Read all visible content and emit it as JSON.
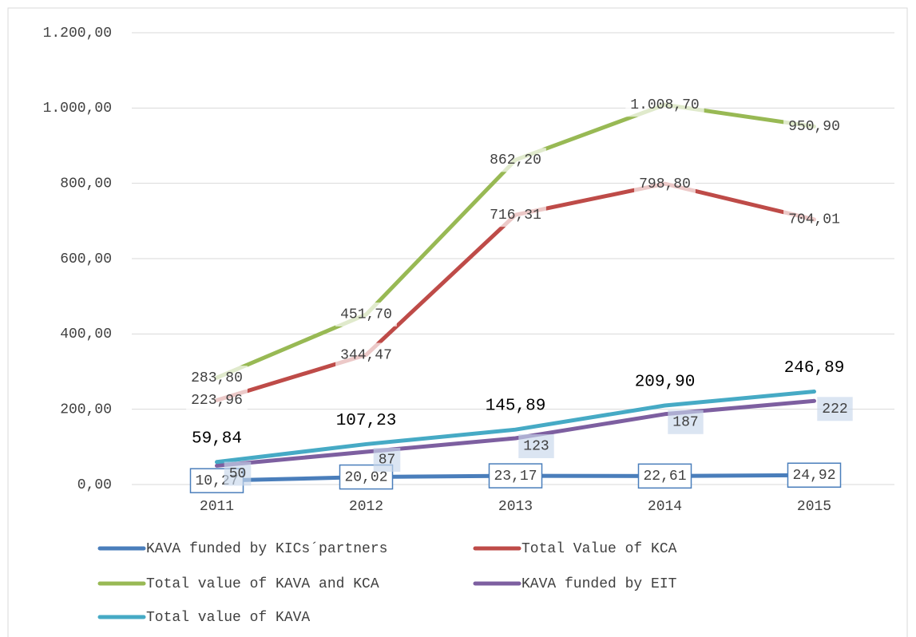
{
  "chart_data": {
    "type": "line",
    "categories": [
      "2011",
      "2012",
      "2013",
      "2014",
      "2015"
    ],
    "ylim": [
      0,
      1200
    ],
    "yticks": [
      {
        "value": 0,
        "label": "0,00"
      },
      {
        "value": 200,
        "label": "200,00"
      },
      {
        "value": 400,
        "label": "400,00"
      },
      {
        "value": 600,
        "label": "600,00"
      },
      {
        "value": 800,
        "label": "800,00"
      },
      {
        "value": 1000,
        "label": "1.000,00"
      },
      {
        "value": 1200,
        "label": "1.200,00"
      }
    ],
    "grid": true,
    "legend": "bottom",
    "series": [
      {
        "name": "KAVA funded by KICs´partners",
        "color": "#4a7ebb",
        "values": [
          10.27,
          20.02,
          23.17,
          22.61,
          24.92
        ],
        "value_labels": [
          "10,27",
          "20,02",
          "23,17",
          "22,61",
          "24,92"
        ]
      },
      {
        "name": "Total Value of KCA",
        "color": "#be4b48",
        "values": [
          223.96,
          344.47,
          716.31,
          798.8,
          704.01
        ],
        "value_labels": [
          "223,96",
          "344,47",
          "716,31",
          "798,80",
          "704,01"
        ]
      },
      {
        "name": "Total value of KAVA and KCA",
        "color": "#98b954",
        "values": [
          283.8,
          451.7,
          862.2,
          1008.7,
          950.9
        ],
        "value_labels": [
          "283,80",
          "451,70",
          "862,20",
          "1.008,70",
          "950,90"
        ]
      },
      {
        "name": "KAVA funded by EIT",
        "color": "#7d5fa0",
        "values": [
          50,
          87,
          123,
          187,
          222
        ]
      },
      {
        "name": "Total value of KAVA",
        "color": "#46aac5",
        "values": [
          59.84,
          107.23,
          145.89,
          209.9,
          246.89
        ],
        "value_labels": [
          "59,84",
          "107,23",
          "145,89",
          "209,90",
          "246,89"
        ]
      }
    ]
  }
}
